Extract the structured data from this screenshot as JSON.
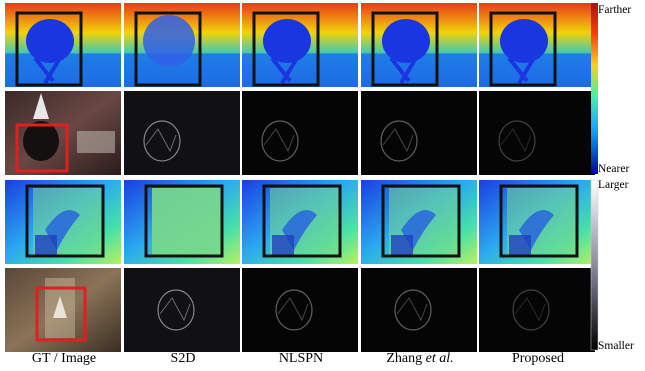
{
  "columns": [
    {
      "label": "GT / Image",
      "italic_suffix": ""
    },
    {
      "label": "S2D",
      "italic_suffix": ""
    },
    {
      "label": "NLSPN",
      "italic_suffix": ""
    },
    {
      "label": "Zhang ",
      "italic_suffix": "et al."
    },
    {
      "label": "Proposed",
      "italic_suffix": ""
    }
  ],
  "rows": [
    {
      "kind": "depth",
      "scene": "chair"
    },
    {
      "kind": "error",
      "scene": "chair"
    },
    {
      "kind": "depth",
      "scene": "plant"
    },
    {
      "kind": "error",
      "scene": "plant"
    }
  ],
  "colorbars": {
    "depth": {
      "top_label": "Farther",
      "bottom_label": "Nearer"
    },
    "error": {
      "top_label": "Larger",
      "bottom_label": "Smaller"
    }
  },
  "colors": {
    "box": "#111111",
    "highlight_box": "#e02020"
  }
}
